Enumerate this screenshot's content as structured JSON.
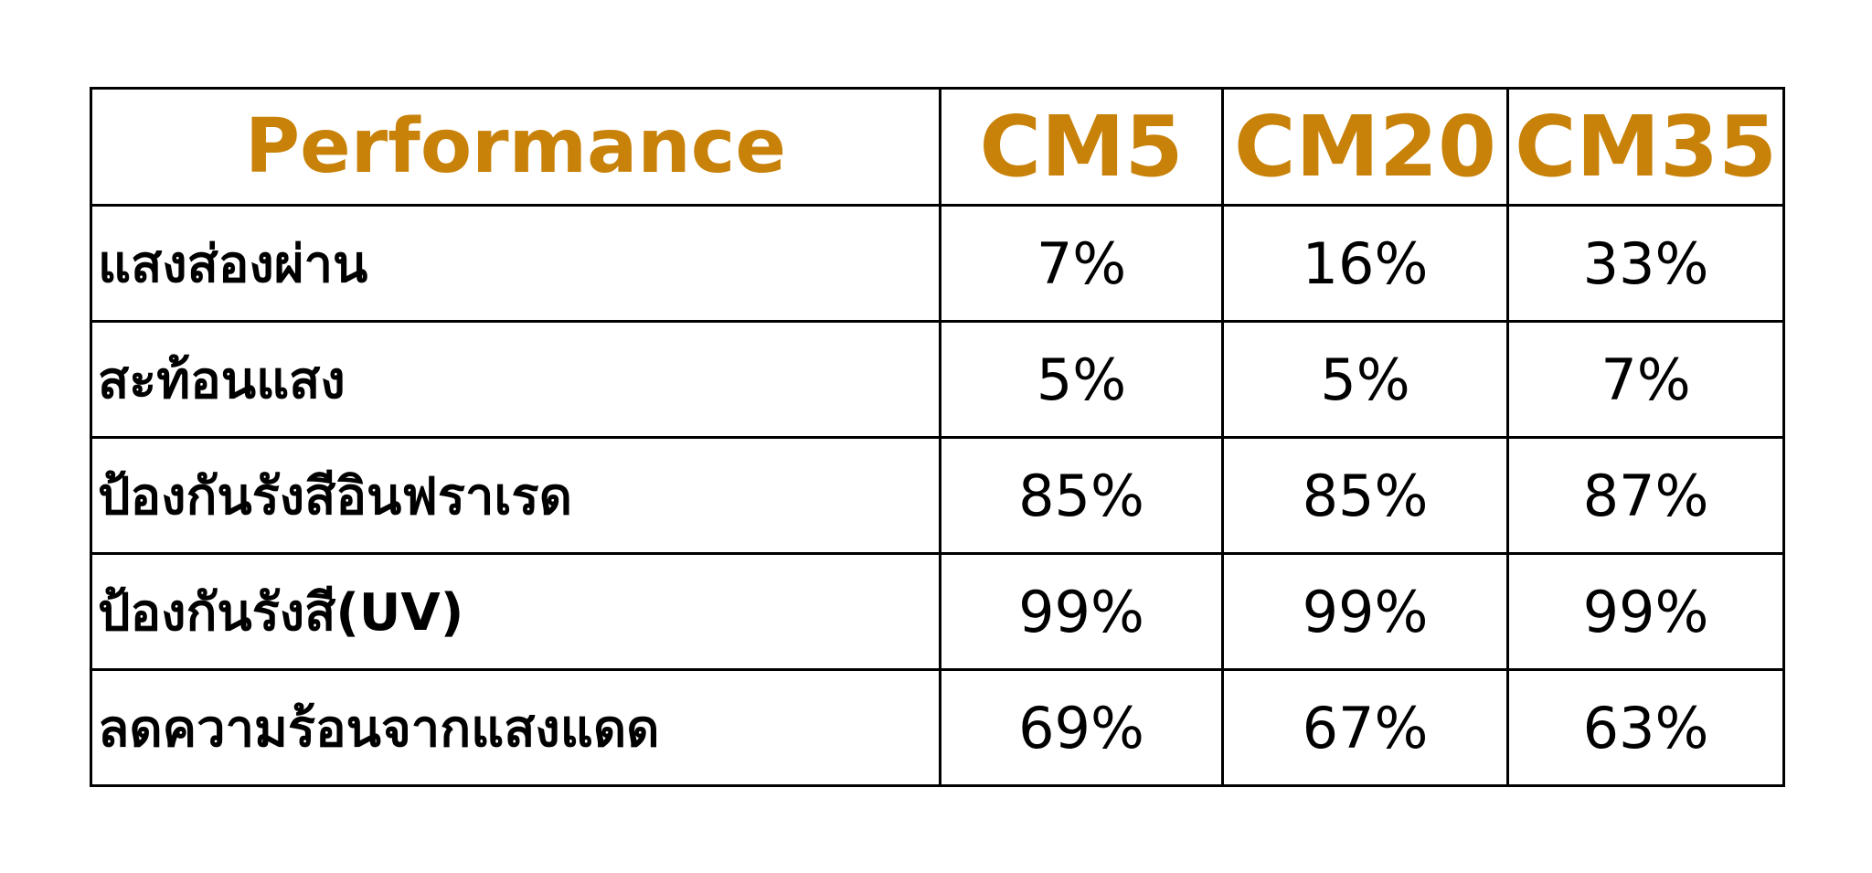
{
  "header": {
    "title": "Performance",
    "columns": [
      "CM5",
      "CM20",
      "CM35"
    ]
  },
  "accent_color": "#c8820a",
  "rows": [
    {
      "label": "แสงส่องผ่าน",
      "values": [
        "7%",
        "16%",
        "33%"
      ]
    },
    {
      "label": "สะท้อนแสง",
      "values": [
        "5%",
        "5%",
        "7%"
      ]
    },
    {
      "label": "ป้องกันรังสีอินฟราเรด",
      "values": [
        "85%",
        "85%",
        "87%"
      ]
    },
    {
      "label": "ป้องกันรังสี(UV)",
      "values": [
        "99%",
        "99%",
        "99%"
      ]
    },
    {
      "label": "ลดความร้อนจากแสงแดด",
      "values": [
        "69%",
        "67%",
        "63%"
      ]
    }
  ]
}
